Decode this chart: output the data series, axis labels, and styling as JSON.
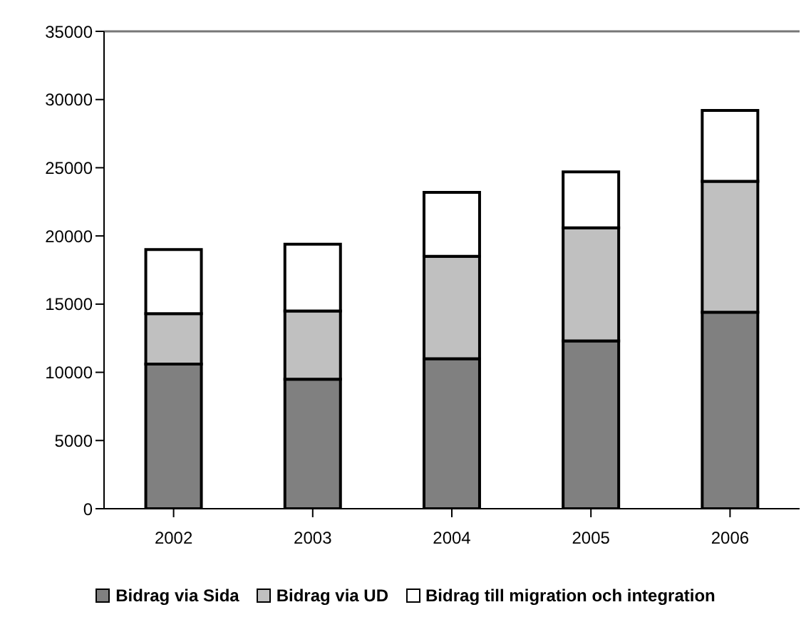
{
  "chart_data": {
    "type": "bar",
    "stacked": true,
    "categories": [
      "2002",
      "2003",
      "2004",
      "2005",
      "2006"
    ],
    "series": [
      {
        "name": "Bidrag via Sida",
        "color": "#808080",
        "values": [
          10600,
          9500,
          11000,
          12300,
          14400
        ]
      },
      {
        "name": "Bidrag via UD",
        "color": "#c0c0c0",
        "values": [
          3700,
          5000,
          7500,
          8300,
          9600
        ]
      },
      {
        "name": "Bidrag till migration och integration",
        "color": "#ffffff",
        "values": [
          4700,
          4900,
          4700,
          4100,
          5200
        ]
      }
    ],
    "ylim": [
      0,
      35000
    ],
    "yticks": [
      0,
      5000,
      10000,
      15000,
      20000,
      25000,
      30000,
      35000
    ],
    "grid": false,
    "legend": "bottom"
  }
}
